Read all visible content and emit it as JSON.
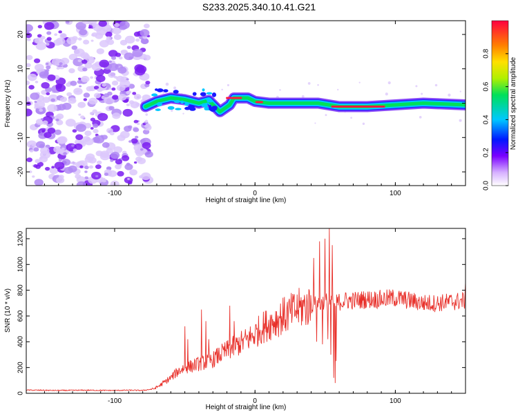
{
  "title": "S233.2025.340.10.41.G21",
  "colors": {
    "background": "#ffffff",
    "axis": "#000000",
    "snr_line": "#e8302a",
    "noise": "#a06cf0",
    "band_outer": "#00c8ff",
    "band_mid": "#00e05a",
    "band_core": "#ff1a40"
  },
  "chart_data": [
    {
      "id": "spectrogram",
      "type": "heatmap",
      "title": "",
      "xlabel": "Height of straight line (km)",
      "ylabel": "Frequency (Hz)",
      "xlim": [
        -163,
        150
      ],
      "ylim": [
        -24,
        24
      ],
      "xticks": [
        -100,
        0,
        100
      ],
      "yticks": [
        -20,
        -10,
        0,
        10,
        20
      ],
      "noise_region_x": [
        -163,
        -78
      ],
      "band_center_hz": [
        [
          -78,
          -1
        ],
        [
          -70,
          0.5
        ],
        [
          -60,
          1.5
        ],
        [
          -50,
          1
        ],
        [
          -40,
          0
        ],
        [
          -33,
          0.8
        ],
        [
          -25,
          -2.5
        ],
        [
          -18,
          -0.5
        ],
        [
          -15,
          1.5
        ],
        [
          -5,
          1.5
        ],
        [
          0,
          0.5
        ],
        [
          10,
          0
        ],
        [
          25,
          0
        ],
        [
          45,
          0
        ],
        [
          60,
          -1
        ],
        [
          80,
          -1
        ],
        [
          100,
          -0.5
        ],
        [
          120,
          0
        ],
        [
          150,
          -0.5
        ]
      ],
      "colorbar": {
        "label": "Normalized spectral amplitude",
        "range": [
          0,
          1
        ],
        "ticks": [
          0.0,
          0.2,
          0.4,
          0.6,
          0.8
        ]
      }
    },
    {
      "id": "snr",
      "type": "line",
      "title": "",
      "xlabel": "Height of straight line (km)",
      "ylabel": "SNR (10 * v/v)",
      "xlim": [
        -163,
        150
      ],
      "ylim": [
        0,
        1280
      ],
      "xticks": [
        -100,
        0,
        100
      ],
      "yticks": [
        0,
        200,
        400,
        600,
        800,
        1000,
        1200
      ],
      "series": [
        {
          "name": "SNR",
          "x": [
            -163,
            -140,
            -120,
            -100,
            -90,
            -80,
            -72,
            -68,
            -60,
            -55,
            -50,
            -45,
            -40,
            -35,
            -30,
            -25,
            -20,
            -15,
            -10,
            -5,
            0,
            5,
            10,
            15,
            20,
            25,
            30,
            35,
            40,
            42,
            45,
            47,
            50,
            52,
            55,
            57,
            60,
            65,
            70,
            80,
            90,
            100,
            110,
            120,
            130,
            140,
            150
          ],
          "y": [
            25,
            22,
            24,
            22,
            24,
            22,
            35,
            60,
            120,
            170,
            200,
            210,
            230,
            240,
            260,
            300,
            330,
            360,
            390,
            420,
            460,
            510,
            540,
            570,
            600,
            620,
            650,
            670,
            680,
            690,
            700,
            690,
            720,
            700,
            690,
            700,
            710,
            720,
            720,
            730,
            730,
            740,
            720,
            700,
            700,
            710,
            720
          ]
        }
      ],
      "spikes": [
        [
          -50,
          520
        ],
        [
          -48,
          420
        ],
        [
          -38,
          650
        ],
        [
          -35,
          560
        ],
        [
          -33,
          420
        ],
        [
          -18,
          680
        ],
        [
          -15,
          560
        ],
        [
          42,
          1050
        ],
        [
          44,
          400
        ],
        [
          46,
          1180
        ],
        [
          48,
          380
        ],
        [
          50,
          1200
        ],
        [
          52,
          420
        ],
        [
          53,
          1280
        ],
        [
          54,
          300
        ],
        [
          55,
          1150
        ],
        [
          56,
          120
        ],
        [
          57,
          80
        ],
        [
          58,
          250
        ],
        [
          150,
          860
        ]
      ]
    }
  ]
}
